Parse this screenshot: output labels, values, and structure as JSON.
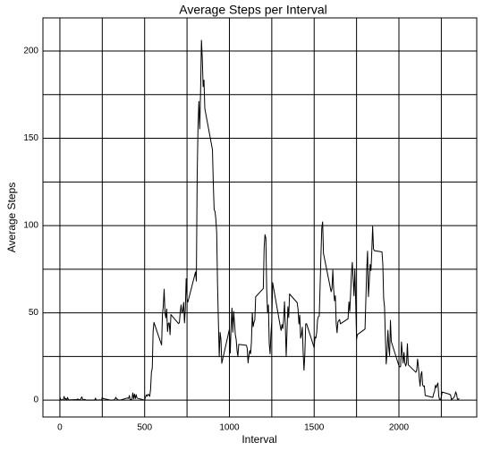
{
  "chart_data": {
    "type": "line",
    "title": "Average Steps per Interval",
    "x_label": "Interval",
    "y_label": "Average Steps",
    "x": [
      0,
      5,
      10,
      15,
      20,
      25,
      30,
      35,
      40,
      45,
      50,
      55,
      100,
      105,
      110,
      115,
      120,
      125,
      130,
      135,
      140,
      145,
      150,
      155,
      200,
      205,
      210,
      215,
      220,
      225,
      230,
      235,
      240,
      245,
      250,
      255,
      300,
      305,
      310,
      315,
      320,
      325,
      330,
      335,
      340,
      345,
      350,
      355,
      400,
      405,
      410,
      415,
      420,
      425,
      430,
      435,
      440,
      445,
      450,
      455,
      500,
      505,
      510,
      515,
      520,
      525,
      530,
      535,
      540,
      545,
      550,
      555,
      600,
      605,
      610,
      615,
      620,
      625,
      630,
      635,
      640,
      645,
      650,
      655,
      700,
      705,
      710,
      715,
      720,
      725,
      730,
      735,
      740,
      745,
      750,
      755,
      800,
      805,
      810,
      815,
      820,
      825,
      830,
      835,
      840,
      845,
      850,
      855,
      900,
      905,
      910,
      915,
      920,
      925,
      930,
      935,
      940,
      945,
      950,
      955,
      1000,
      1005,
      1010,
      1015,
      1020,
      1025,
      1030,
      1035,
      1040,
      1045,
      1050,
      1055,
      1100,
      1105,
      1110,
      1115,
      1120,
      1125,
      1130,
      1135,
      1140,
      1145,
      1150,
      1155,
      1200,
      1205,
      1210,
      1215,
      1220,
      1225,
      1230,
      1235,
      1240,
      1245,
      1250,
      1255,
      1300,
      1305,
      1310,
      1315,
      1320,
      1325,
      1330,
      1335,
      1340,
      1345,
      1350,
      1355,
      1400,
      1405,
      1410,
      1415,
      1420,
      1425,
      1430,
      1435,
      1440,
      1445,
      1450,
      1455,
      1500,
      1505,
      1510,
      1515,
      1520,
      1525,
      1530,
      1535,
      1540,
      1545,
      1550,
      1555,
      1600,
      1605,
      1610,
      1615,
      1620,
      1625,
      1630,
      1635,
      1640,
      1645,
      1650,
      1655,
      1700,
      1705,
      1710,
      1715,
      1720,
      1725,
      1730,
      1735,
      1740,
      1745,
      1750,
      1755,
      1800,
      1805,
      1810,
      1815,
      1820,
      1825,
      1830,
      1835,
      1840,
      1845,
      1850,
      1855,
      1900,
      1905,
      1910,
      1915,
      1920,
      1925,
      1930,
      1935,
      1940,
      1945,
      1950,
      1955,
      2000,
      2005,
      2010,
      2015,
      2020,
      2025,
      2030,
      2035,
      2040,
      2045,
      2050,
      2055,
      2100,
      2105,
      2110,
      2115,
      2120,
      2125,
      2130,
      2135,
      2140,
      2145,
      2150,
      2155,
      2200,
      2205,
      2210,
      2215,
      2220,
      2225,
      2230,
      2235,
      2240,
      2245,
      2250,
      2255,
      2300,
      2305,
      2310,
      2315,
      2320,
      2325,
      2330,
      2335,
      2340,
      2345,
      2350,
      2355
    ],
    "series": [
      {
        "name": "Average Steps",
        "color": "#000000",
        "values": [
          1.7,
          0.3,
          0.1,
          0.2,
          0.1,
          2.1,
          0.5,
          0.9,
          0,
          1.5,
          0.3,
          0.1,
          0.3,
          0.7,
          0.2,
          0.3,
          0,
          1.1,
          1.8,
          0.2,
          0.2,
          0.4,
          0.3,
          0,
          0,
          0,
          1.1,
          0,
          0,
          0.1,
          0,
          0.2,
          0,
          0,
          1.5,
          0.9,
          0,
          0,
          0,
          0,
          0.2,
          0.6,
          1.6,
          0.6,
          0.5,
          0.1,
          0,
          0,
          1.2,
          0.9,
          2.6,
          0,
          0.3,
          0.4,
          4.1,
          0.7,
          3.5,
          0.8,
          3.1,
          1.1,
          0,
          1.6,
          3,
          2.2,
          3.3,
          3,
          2.1,
          6.1,
          16,
          18.3,
          39.5,
          44.5,
          31.5,
          49.3,
          53.8,
          63.5,
          50,
          47.1,
          52.2,
          39.3,
          44,
          44.2,
          37.4,
          49,
          43.8,
          44.4,
          50.5,
          54.5,
          49.9,
          51,
          56,
          44.3,
          52.3,
          69.5,
          57.8,
          56.2,
          73.4,
          68.2,
          129.4,
          157.5,
          171.2,
          155.4,
          177.3,
          206.2,
          195.9,
          179.6,
          183.4,
          167,
          143.5,
          124,
          109.1,
          108.1,
          103.7,
          96,
          66.2,
          45.2,
          24.8,
          38.8,
          35,
          21.1,
          40.6,
          27,
          42.4,
          52.7,
          38.9,
          50.8,
          44.3,
          37.4,
          34.7,
          28.3,
          25.1,
          31.9,
          31.4,
          29.7,
          21.3,
          25.5,
          28.4,
          26.5,
          33.4,
          50,
          42,
          44.6,
          46,
          59.2,
          63.9,
          87.6,
          94.8,
          92.8,
          63.4,
          50.2,
          54.5,
          32.4,
          26.5,
          37.7,
          45.1,
          67.3,
          42.3,
          39.9,
          43.3,
          41,
          46.2,
          56.4,
          42.8,
          25.1,
          40,
          53.5,
          47.3,
          60.8,
          55.8,
          52,
          43.6,
          48.7,
          35.5,
          37.5,
          41.8,
          27.5,
          17.1,
          26.1,
          43.6,
          43.8,
          30,
          36.1,
          35.5,
          38.8,
          46,
          47.8,
          48.1,
          65.3,
          82.9,
          98.7,
          102.1,
          84,
          62.1,
          64.1,
          74.5,
          63.2,
          56.9,
          59.8,
          43.9,
          38.6,
          44.7,
          45.5,
          46.2,
          43.7,
          46.6,
          56.3,
          50.7,
          61.2,
          72.7,
          78.9,
          68.9,
          59.7,
          75.1,
          56.5,
          34.8,
          37.5,
          40.7,
          58,
          74.7,
          85.3,
          59.3,
          67.8,
          77.7,
          74.2,
          85.3,
          99.5,
          86.6,
          85.6,
          84.9,
          77.8,
          58,
          53.4,
          36.3,
          20.7,
          27.4,
          40,
          30.2,
          25.5,
          45.7,
          33.5,
          19.6,
          19,
          19.3,
          33.3,
          26.8,
          21.2,
          27.3,
          21.3,
          19.5,
          21.3,
          32.3,
          20.2,
          15.9,
          17.2,
          23.5,
          19.2,
          12.5,
          8,
          14.7,
          16.3,
          8.7,
          7.8,
          8.1,
          2.6,
          1.5,
          3.7,
          4.8,
          8.5,
          7.1,
          8.7,
          9.8,
          2.2,
          0.3,
          0.1,
          1.6,
          4.6,
          3.3,
          2.8,
          0,
          0.8,
          1,
          1.6,
          2.6,
          4.7,
          3.3,
          0.6,
          0.2,
          1.1
        ]
      }
    ],
    "xlim": [
      -100,
      2459
    ],
    "xticks": [
      0,
      500,
      1000,
      1500,
      2000
    ],
    "xgrid": [
      0,
      250,
      500,
      750,
      1000,
      1250,
      1500,
      1750,
      2000,
      2250
    ],
    "ylim": [
      -9.7,
      219
    ],
    "yticks": [
      0,
      50,
      100,
      150,
      200
    ],
    "ygrid": [
      0,
      25,
      50,
      75,
      100,
      125,
      150,
      175,
      200
    ],
    "grid": true
  }
}
